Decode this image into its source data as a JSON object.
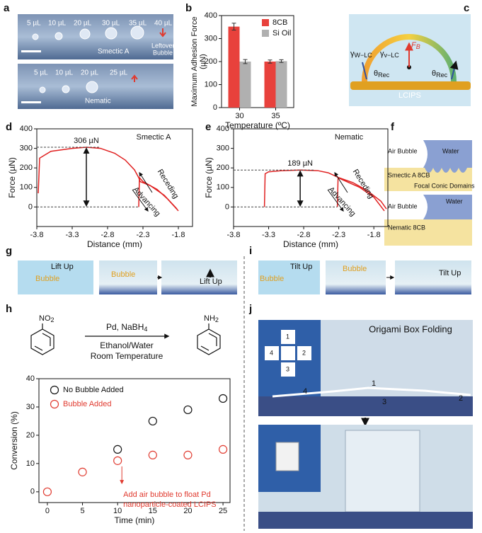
{
  "panel_labels": [
    "a",
    "b",
    "c",
    "d",
    "e",
    "f",
    "g",
    "h",
    "i",
    "j"
  ],
  "panel_a": {
    "top": {
      "volumes": [
        "5 µL",
        "10 µL",
        "20 µL",
        "30 µL",
        "35 µL",
        "40 µL"
      ],
      "phase": "Smectic A",
      "note": [
        "Leftover",
        "Bubble"
      ]
    },
    "bottom": {
      "volumes": [
        "5 µL",
        "10 µL",
        "20 µL",
        "25 µL"
      ],
      "phase": "Nematic"
    }
  },
  "panel_c": {
    "force": [
      "F",
      "B"
    ],
    "gamma_left": [
      "γ",
      "W−LC"
    ],
    "gamma_right": [
      "γ",
      "v−LC"
    ],
    "angles": [
      [
        "θ",
        "Rec"
      ],
      [
        "θ",
        "Rec"
      ]
    ],
    "substrate": "LCIPS"
  },
  "panel_f": {
    "top": {
      "bubble": "Air Bubble",
      "water": "Water",
      "phase": "Smectic A 8CB",
      "domains": "Focal Conic Domains"
    },
    "bottom": {
      "bubble": "Air Bubble",
      "water": "Water",
      "phase": "Nematic 8CB"
    }
  },
  "panel_g": {
    "photo1": [
      "Lift Up",
      "Bubble"
    ],
    "photo2": "Bubble",
    "photo3": "Lift Up"
  },
  "panel_i": {
    "photo1": [
      "Tilt Up",
      "Bubble"
    ],
    "photo2": "Bubble",
    "photo3": "Tilt Up"
  },
  "panel_h_scheme": {
    "reactant": [
      "NO",
      "2"
    ],
    "reagent": [
      "Pd, NaBH",
      "4"
    ],
    "solvent": "Ethanol/Water",
    "conditions": "Room Temperature",
    "product": [
      "NH",
      "2"
    ]
  },
  "panel_j": {
    "title": "Origami Box Folding",
    "faces": [
      "1",
      "2",
      "3",
      "4"
    ],
    "photo_labels": [
      "1",
      "2",
      "3",
      "4"
    ]
  },
  "chart_data": [
    {
      "type": "bar",
      "ylabel": [
        "Maximum Adhesion Force",
        "(µN)"
      ],
      "xlabel": "Temperature (ºC)",
      "categories": [
        "30",
        "35"
      ],
      "series": [
        {
          "name": "8CB",
          "color": "#e8413c",
          "values": [
            352,
            200
          ],
          "errors": [
            15,
            7
          ]
        },
        {
          "name": "Si Oil",
          "color": "#b0b0b0",
          "values": [
            200,
            202
          ],
          "errors": [
            9,
            6
          ]
        }
      ],
      "ylim": [
        0,
        400
      ],
      "yticks": [
        0,
        100,
        200,
        300,
        400
      ],
      "legend": "upper right"
    },
    {
      "type": "line",
      "ylabel": "Force (µN)",
      "xlabel": "Distance (mm)",
      "phase": "Smectic A",
      "annotation": "306 µN",
      "arrows": [
        "Advancing",
        "Receding"
      ],
      "series": [
        {
          "color": "#e02020",
          "x": [
            -3.78,
            -3.76,
            -3.6,
            -3.3,
            -3.1,
            -2.9,
            -2.7,
            -2.55,
            -2.42,
            -2.36,
            -2.34,
            -2.2,
            -2.0,
            -1.82
          ],
          "values": [
            70,
            250,
            285,
            300,
            306,
            300,
            275,
            240,
            190,
            150,
            130,
            110,
            60,
            -10
          ]
        },
        {
          "color": "#e02020",
          "x": [
            -2.36,
            -2.35,
            -2.3,
            -2.1,
            -1.95,
            -1.8
          ],
          "values": [
            0,
            150,
            130,
            90,
            40,
            -20
          ]
        }
      ],
      "reference_lines": [
        306,
        0
      ],
      "xlim": [
        -3.8,
        -1.6
      ],
      "xticks": [
        -3.8,
        -3.3,
        -2.8,
        -2.3,
        -1.8
      ],
      "ylim": [
        -100,
        400
      ],
      "yticks": [
        0,
        100,
        200,
        300,
        400
      ]
    },
    {
      "type": "line",
      "ylabel": "Force (µN)",
      "xlabel": "Distance (mm)",
      "phase": "Nematic",
      "annotation": "189 µN",
      "arrows": [
        "Advancing",
        "Receding"
      ],
      "series": [
        {
          "color": "#e02020",
          "x": [
            -3.36,
            -3.35,
            -3.3,
            -3.1,
            -2.85,
            -2.6,
            -2.45,
            -2.36,
            -2.3,
            -2.1,
            -1.9,
            -1.7,
            -1.62
          ],
          "values": [
            0,
            170,
            180,
            186,
            189,
            186,
            175,
            160,
            150,
            125,
            85,
            30,
            -10
          ]
        },
        {
          "color": "#e02020",
          "x": [
            -2.32,
            -2.31,
            -2.25,
            -2.0,
            -1.8,
            -1.65
          ],
          "values": [
            0,
            150,
            140,
            100,
            50,
            -20
          ]
        }
      ],
      "reference_lines": [
        189,
        0
      ],
      "xlim": [
        -3.8,
        -1.6
      ],
      "xticks": [
        -3.8,
        -3.3,
        -2.8,
        -2.3,
        -1.8
      ],
      "ylim": [
        -100,
        400
      ],
      "yticks": [
        0,
        100,
        200,
        300,
        400
      ]
    },
    {
      "type": "scatter",
      "ylabel": "Conversion (%)",
      "xlabel": "Time (min)",
      "series": [
        {
          "name": "No Bubble Added",
          "color": "#111111",
          "x": [
            10,
            15,
            20,
            25
          ],
          "values": [
            15,
            25,
            29,
            33
          ]
        },
        {
          "name": "Bubble Added",
          "color": "#e03a2f",
          "x": [
            0,
            5,
            10,
            15,
            20,
            25
          ],
          "values": [
            0,
            7,
            11,
            13,
            13,
            15
          ]
        }
      ],
      "annotation": [
        "Add air bubble to float Pd",
        "nanoparticle-coated LCIPS"
      ],
      "xlim": [
        -1.2,
        26
      ],
      "xticks": [
        0,
        5,
        10,
        15,
        20,
        25
      ],
      "ylim": [
        -3.8,
        40
      ],
      "yticks": [
        0,
        10,
        20,
        30,
        40
      ],
      "legend": "upper left"
    }
  ]
}
